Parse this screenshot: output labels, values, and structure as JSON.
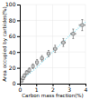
{
  "chart_data": {
    "type": "scatter",
    "xlabel": "Carbon mass fraction(%)",
    "ylabel": "Area occupied by carbides(%)",
    "xlim": [
      0,
      4
    ],
    "ylim": [
      0,
      100
    ],
    "xticks": [
      0,
      1,
      2,
      3,
      4
    ],
    "yticks": [
      0,
      20,
      40,
      60,
      80,
      100
    ],
    "grid": true,
    "series": [
      {
        "type": "line",
        "color": "#88ddee",
        "line_style": "dotted",
        "x": [
          0.0,
          0.3,
          0.6,
          0.9,
          1.2,
          1.5,
          1.8,
          2.1,
          2.5,
          3.0,
          3.5,
          4.0
        ],
        "values": [
          2,
          8,
          13,
          18,
          24,
          30,
          36,
          42,
          50,
          60,
          69,
          78
        ]
      },
      {
        "type": "scatter",
        "color": "#cccccc",
        "marker": "square",
        "x": [
          0.12,
          0.2,
          0.28,
          0.42,
          0.58,
          0.8,
          1.05,
          1.35,
          1.75,
          2.15,
          2.65,
          3.25,
          3.8
        ],
        "values": [
          4,
          7,
          10,
          14,
          17,
          22,
          27,
          32,
          38,
          44,
          52,
          63,
          74
        ],
        "error_x": [
          0.04,
          0.04,
          0.04,
          0.05,
          0.05,
          0.06,
          0.07,
          0.08,
          0.09,
          0.1,
          0.12,
          0.15,
          0.18
        ],
        "error_y": [
          2,
          2,
          2.5,
          2.5,
          3,
          3,
          3.5,
          3.5,
          4,
          4.5,
          5,
          6,
          7
        ]
      }
    ]
  }
}
